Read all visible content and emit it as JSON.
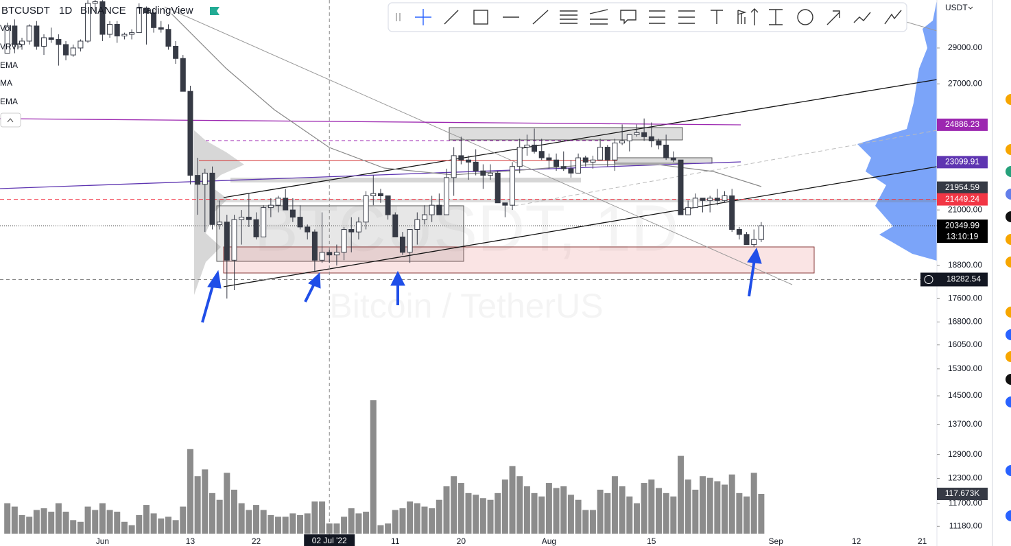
{
  "header": {
    "symbol": "BTCUSDT",
    "interval": "1D",
    "exchange": "BINANCE",
    "source": "TradingView"
  },
  "indicators": [
    "Vol",
    "VRVP",
    "EMA",
    "MA",
    "EMA"
  ],
  "watermark": {
    "symbol": "BTCUSDT, 1D",
    "name": "Bitcoin / TetherUS"
  },
  "currency": "USDT",
  "chart_data": {
    "type": "candlestick",
    "x": [
      "2022-05-19",
      "2022-05-20",
      "2022-05-21",
      "2022-05-22",
      "2022-05-23",
      "2022-05-24",
      "2022-05-25",
      "2022-05-26",
      "2022-05-27",
      "2022-05-28",
      "2022-05-29",
      "2022-05-30",
      "2022-05-31",
      "2022-06-01",
      "2022-06-02",
      "2022-06-03",
      "2022-06-04",
      "2022-06-05",
      "2022-06-06",
      "2022-06-07",
      "2022-06-08",
      "2022-06-09",
      "2022-06-10",
      "2022-06-11",
      "2022-06-12",
      "2022-06-13",
      "2022-06-14",
      "2022-06-15",
      "2022-06-16",
      "2022-06-17",
      "2022-06-18",
      "2022-06-19",
      "2022-06-20",
      "2022-06-21",
      "2022-06-22",
      "2022-06-23",
      "2022-06-24",
      "2022-06-25",
      "2022-06-26",
      "2022-06-27",
      "2022-06-28",
      "2022-06-29",
      "2022-06-30",
      "2022-07-01",
      "2022-07-02",
      "2022-07-03",
      "2022-07-04",
      "2022-07-05",
      "2022-07-06",
      "2022-07-07",
      "2022-07-08",
      "2022-07-09",
      "2022-07-10",
      "2022-07-11",
      "2022-07-12",
      "2022-07-13",
      "2022-07-14",
      "2022-07-15",
      "2022-07-16",
      "2022-07-17",
      "2022-07-18",
      "2022-07-19",
      "2022-07-20",
      "2022-07-21",
      "2022-07-22",
      "2022-07-23",
      "2022-07-24",
      "2022-07-25",
      "2022-07-26",
      "2022-07-27",
      "2022-07-28",
      "2022-07-29",
      "2022-07-30",
      "2022-07-31",
      "2022-08-01",
      "2022-08-02",
      "2022-08-03",
      "2022-08-04",
      "2022-08-05",
      "2022-08-06",
      "2022-08-07",
      "2022-08-08",
      "2022-08-09",
      "2022-08-10",
      "2022-08-11",
      "2022-08-12",
      "2022-08-13",
      "2022-08-14",
      "2022-08-15",
      "2022-08-16",
      "2022-08-17",
      "2022-08-18",
      "2022-08-19",
      "2022-08-20",
      "2022-08-21",
      "2022-08-22",
      "2022-08-23",
      "2022-08-24",
      "2022-08-25",
      "2022-08-26",
      "2022-08-27",
      "2022-08-28",
      "2022-08-29",
      "2022-08-30"
    ],
    "open": [
      28700,
      30300,
      29200,
      29400,
      30300,
      29100,
      29600,
      29500,
      29200,
      28600,
      29000,
      29400,
      31700,
      31800,
      29800,
      30400,
      29700,
      29800,
      29900,
      31400,
      31100,
      30200,
      30100,
      29100,
      28400,
      26600,
      22500,
      22100,
      22600,
      20400,
      20500,
      19000,
      20600,
      20700,
      20600,
      19900,
      21100,
      21200,
      21500,
      21000,
      20700,
      20300,
      20100,
      19000,
      19300,
      19200,
      19300,
      20200,
      20100,
      20500,
      21600,
      21700,
      21600,
      20800,
      19900,
      19300,
      20200,
      20600,
      20800,
      21200,
      20800,
      22400,
      23400,
      23200,
      23100,
      22700,
      22500,
      22600,
      21300,
      21200,
      22900,
      23800,
      23900,
      23600,
      23300,
      23200,
      22900,
      22800,
      22600,
      23300,
      23100,
      23200,
      23800,
      23200,
      24000,
      24100,
      24400,
      24500,
      24300,
      24100,
      23900,
      23300,
      23200,
      20800,
      21100,
      21500,
      21400,
      21500,
      21400,
      21600,
      20200,
      20000,
      19600,
      19800
    ],
    "high": [
      30500,
      30700,
      29600,
      30400,
      30600,
      29800,
      30200,
      29800,
      29400,
      29200,
      29500,
      31900,
      32300,
      31900,
      30600,
      30600,
      29900,
      30100,
      31700,
      31500,
      31300,
      30600,
      30400,
      29400,
      28600,
      26900,
      23300,
      22800,
      22900,
      21400,
      20800,
      20800,
      21000,
      21700,
      20900,
      21200,
      21500,
      21600,
      21900,
      21500,
      21200,
      20400,
      20200,
      20900,
      19400,
      19600,
      20300,
      20700,
      20700,
      21800,
      22500,
      21900,
      21600,
      20900,
      20100,
      20200,
      20900,
      21200,
      21600,
      21700,
      22800,
      23800,
      24300,
      23400,
      23700,
      23000,
      23000,
      22700,
      21300,
      23100,
      24200,
      24400,
      24700,
      24200,
      23500,
      23500,
      23600,
      23200,
      23500,
      23400,
      23400,
      24200,
      23900,
      24200,
      24900,
      24400,
      24900,
      25200,
      25000,
      24200,
      24400,
      23600,
      23200,
      21400,
      21700,
      21500,
      21600,
      21900,
      21800,
      21900,
      20300,
      20100,
      20200,
      20500
    ],
    "low": [
      28700,
      28700,
      28900,
      29200,
      28900,
      28600,
      29300,
      28000,
      28300,
      28500,
      28800,
      29300,
      31200,
      29400,
      29600,
      29300,
      29500,
      29500,
      29900,
      29200,
      29900,
      29900,
      28900,
      28100,
      26600,
      22100,
      20800,
      20100,
      20200,
      20200,
      17600,
      17900,
      19600,
      20300,
      19800,
      19900,
      20700,
      20900,
      21000,
      20500,
      20200,
      19800,
      18600,
      18900,
      18900,
      18800,
      19000,
      19300,
      19800,
      20200,
      21200,
      21300,
      20600,
      19900,
      19200,
      18900,
      19600,
      20400,
      20500,
      20800,
      20800,
      21600,
      23000,
      22300,
      22500,
      21900,
      22300,
      21300,
      20700,
      21000,
      22600,
      23400,
      23500,
      23200,
      22800,
      22700,
      22700,
      22400,
      22600,
      22900,
      22800,
      23200,
      22900,
      22700,
      23900,
      23600,
      24300,
      24100,
      23800,
      23700,
      23200,
      23100,
      20800,
      20800,
      21100,
      20900,
      20900,
      21200,
      21300,
      20100,
      19800,
      19600,
      19500,
      19700
    ],
    "close": [
      30300,
      29200,
      29400,
      30300,
      29100,
      29600,
      29500,
      29200,
      28600,
      29000,
      29400,
      31700,
      31800,
      29800,
      30400,
      29700,
      29800,
      29900,
      31400,
      31100,
      30200,
      30100,
      29100,
      28400,
      26600,
      22500,
      22100,
      22600,
      20400,
      20500,
      19000,
      20600,
      20700,
      20600,
      19900,
      21100,
      21200,
      21500,
      21000,
      20700,
      20300,
      20100,
      19000,
      19300,
      19200,
      19300,
      20200,
      20100,
      20500,
      21600,
      21700,
      21600,
      20800,
      19900,
      19300,
      20200,
      20600,
      20800,
      21200,
      20800,
      22400,
      23400,
      23200,
      23100,
      22700,
      22500,
      22600,
      21300,
      21200,
      22900,
      23800,
      23900,
      23600,
      23300,
      23200,
      22900,
      22800,
      22600,
      23300,
      23100,
      23200,
      23800,
      23200,
      24000,
      24100,
      24400,
      24500,
      24300,
      24100,
      23900,
      23300,
      23200,
      20800,
      21100,
      21500,
      21400,
      21500,
      21400,
      21600,
      20200,
      20000,
      19600,
      19800,
      20349.99
    ],
    "volume": [
      90,
      80,
      55,
      50,
      70,
      75,
      65,
      90,
      65,
      40,
      35,
      80,
      70,
      90,
      70,
      65,
      35,
      25,
      55,
      85,
      60,
      45,
      50,
      40,
      80,
      250,
      170,
      190,
      120,
      100,
      180,
      130,
      90,
      70,
      85,
      70,
      55,
      50,
      50,
      60,
      55,
      60,
      95,
      95,
      30,
      30,
      50,
      75,
      60,
      65,
      395,
      25,
      30,
      70,
      75,
      95,
      90,
      80,
      75,
      100,
      140,
      170,
      150,
      120,
      115,
      105,
      100,
      120,
      160,
      200,
      170,
      140,
      120,
      110,
      150,
      135,
      140,
      115,
      100,
      70,
      70,
      130,
      120,
      170,
      140,
      110,
      90,
      150,
      160,
      135,
      120,
      110,
      230,
      160,
      130,
      170,
      165,
      155,
      145,
      175,
      120,
      110,
      180,
      117.673
    ],
    "volume_badge": {
      "value": 117.673,
      "label": "117.673K"
    },
    "countdown": "13:10:19",
    "up_color": "#ffffff",
    "down_color": "#363a45",
    "volume_color": "#8c8c8c",
    "log_scale": true,
    "ylim": [
      10750,
      31910
    ],
    "yticks": [
      {
        "value": 29000,
        "label": "29000.00"
      },
      {
        "value": 27000,
        "label": "27000.00"
      },
      {
        "value": 21000,
        "label": "21000.00"
      },
      {
        "value": 18800,
        "label": "18800.00"
      },
      {
        "value": 17600,
        "label": "17600.00"
      },
      {
        "value": 16800,
        "label": "16800.00"
      },
      {
        "value": 16050,
        "label": "16050.00"
      },
      {
        "value": 15300,
        "label": "15300.00"
      },
      {
        "value": 14500,
        "label": "14500.00"
      },
      {
        "value": 13700,
        "label": "13700.00"
      },
      {
        "value": 12900,
        "label": "12900.00"
      },
      {
        "value": 12300,
        "label": "12300.00"
      },
      {
        "value": 11700,
        "label": "11700.00"
      },
      {
        "value": 11180,
        "label": "11180.00"
      }
    ],
    "xlim": [
      "2022-05-18",
      "2022-09-23"
    ],
    "xticks": [
      {
        "value": "2022-06-01",
        "label": "Jun"
      },
      {
        "value": "2022-06-13",
        "label": "13"
      },
      {
        "value": "2022-06-22",
        "label": "22"
      },
      {
        "value": "2022-07-11",
        "label": "11"
      },
      {
        "value": "2022-07-20",
        "label": "20"
      },
      {
        "value": "2022-08-01",
        "label": "Aug"
      },
      {
        "value": "2022-08-15",
        "label": "15"
      },
      {
        "value": "2022-09-01",
        "label": "Sep"
      },
      {
        "value": "2022-09-12",
        "label": "12"
      },
      {
        "value": "2022-09-21",
        "label": "21"
      }
    ],
    "price_levels": [
      {
        "value": 24886.23,
        "color": "#9c27b0"
      },
      {
        "value": 23099.91,
        "color": "#5e35b1"
      },
      {
        "value": 21954.59,
        "color": "#363a45"
      },
      {
        "value": 21449.24,
        "color": "#f23645"
      }
    ],
    "crosshair": {
      "x": {
        "value": "2022-07-02",
        "label": "02 Jul '22"
      },
      "price": 18282.54
    }
  }
}
